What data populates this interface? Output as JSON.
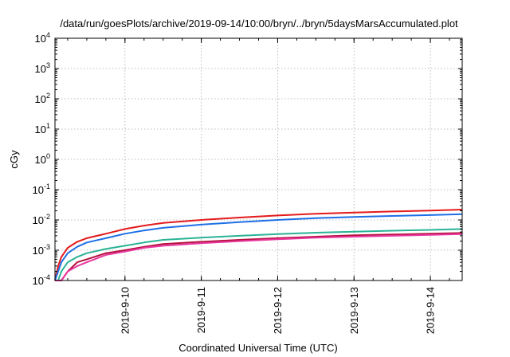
{
  "chart_data": {
    "type": "line",
    "title": "/data/run/goesPlots/archive/2019-09-14/10:00/bryn/../bryn/5daysMarsAccumulated.plot",
    "xlabel": "Coordinated Universal Time (UTC)",
    "ylabel": "cGy",
    "yscale": "log",
    "ylim_exponents": [
      -4,
      4
    ],
    "y_tick_labels": [
      {
        "base": "10",
        "exp": "-4"
      },
      {
        "base": "10",
        "exp": "-3"
      },
      {
        "base": "10",
        "exp": "-2"
      },
      {
        "base": "10",
        "exp": "-1"
      },
      {
        "base": "10",
        "exp": "0"
      },
      {
        "base": "10",
        "exp": "1"
      },
      {
        "base": "10",
        "exp": "2"
      },
      {
        "base": "10",
        "exp": "3"
      },
      {
        "base": "10",
        "exp": "4"
      }
    ],
    "xlim": [
      "2019-09-09 02:00",
      "2019-09-14 10:00"
    ],
    "x_tick_labels": [
      "2019-9-10",
      "2019-9-11",
      "2019-9-12",
      "2019-9-13",
      "2019-9-14"
    ],
    "grid": true,
    "x": [
      "2019-09-09 02:00",
      "2019-09-09 03:00",
      "2019-09-09 04:00",
      "2019-09-09 06:00",
      "2019-09-09 09:00",
      "2019-09-09 12:00",
      "2019-09-09 18:00",
      "2019-09-10 00:00",
      "2019-09-10 06:00",
      "2019-09-10 12:00",
      "2019-09-11 00:00",
      "2019-09-11 12:00",
      "2019-09-12 00:00",
      "2019-09-12 12:00",
      "2019-09-13 00:00",
      "2019-09-13 12:00",
      "2019-09-14 00:00",
      "2019-09-14 10:00"
    ],
    "series": [
      {
        "color": "#e41a1c",
        "values": [
          0.0001,
          0.0003,
          0.0006,
          0.0012,
          0.0019,
          0.0025,
          0.0035,
          0.005,
          0.0065,
          0.008,
          0.01,
          0.012,
          0.014,
          0.016,
          0.0175,
          0.019,
          0.0205,
          0.022
        ]
      },
      {
        "color": "#1e6fe6",
        "values": [
          0.0001,
          0.0002,
          0.0004,
          0.0008,
          0.0013,
          0.0018,
          0.0025,
          0.0035,
          0.0045,
          0.0055,
          0.007,
          0.0085,
          0.01,
          0.0115,
          0.0125,
          0.0135,
          0.0145,
          0.0155
        ]
      },
      {
        "color": "#2ab395",
        "values": [
          0.0001,
          0.0001,
          0.0002,
          0.0004,
          0.0006,
          0.0008,
          0.0011,
          0.0014,
          0.0018,
          0.0022,
          0.0026,
          0.003,
          0.0034,
          0.0038,
          0.0041,
          0.0044,
          0.0047,
          0.005
        ]
      },
      {
        "color": "#b5113d",
        "values": [
          0.0001,
          0.0001,
          0.0001,
          0.0002,
          0.0004,
          0.0005,
          0.0008,
          0.001,
          0.0013,
          0.0016,
          0.0019,
          0.0022,
          0.0025,
          0.0028,
          0.0031,
          0.0033,
          0.0035,
          0.0037
        ]
      },
      {
        "color": "#e8389f",
        "values": [
          0.0001,
          0.0001,
          0.0001,
          0.0002,
          0.0003,
          0.0004,
          0.0007,
          0.0009,
          0.0012,
          0.0014,
          0.0017,
          0.002,
          0.0023,
          0.0026,
          0.0028,
          0.003,
          0.0032,
          0.0034
        ]
      }
    ]
  }
}
